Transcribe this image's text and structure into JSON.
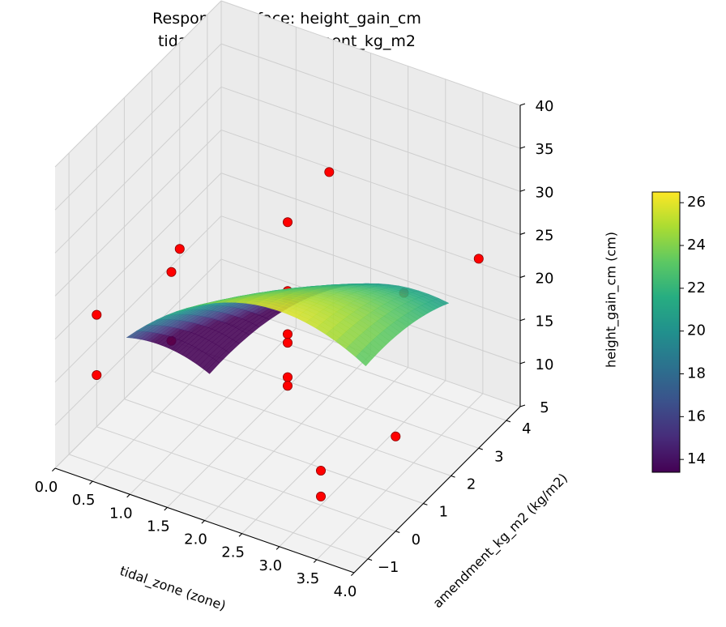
{
  "chart_data": {
    "type": "surface3d",
    "title_line1": "Response Surface: height_gain_cm",
    "title_line2": "tidal_zone vs amendment_kg_m2",
    "xlabel": "tidal_zone (zone)",
    "ylabel": "amendment_kg_m2 (kg/m2)",
    "zlabel": "height_gain_cm (cm)",
    "xlim": [
      0,
      4
    ],
    "ylim": [
      -1.5,
      4.5
    ],
    "zlim": [
      5,
      40
    ],
    "x_ticks": [
      "0.0",
      "0.5",
      "1.0",
      "1.5",
      "2.0",
      "2.5",
      "3.0",
      "3.5",
      "4.0"
    ],
    "y_ticks": [
      "−1",
      "0",
      "1",
      "2",
      "3",
      "4"
    ],
    "z_ticks": [
      "5",
      "10",
      "15",
      "20",
      "25",
      "30",
      "35",
      "40"
    ],
    "grid": true,
    "colormap": "viridis",
    "colorbar": {
      "min": 13.4,
      "max": 26.5,
      "ticks": [
        "14",
        "16",
        "18",
        "20",
        "22",
        "24",
        "26"
      ]
    },
    "surface": {
      "x_range": [
        0.4,
        3.6
      ],
      "y_range": [
        0,
        3
      ],
      "model": "z = 12.6 + 10.8*x - 2.2*x^2 - 3.9*y + 1.2*x*y - 0.4*y^2"
    },
    "points": [
      {
        "x": 0.0,
        "y": 0.0,
        "z": 18
      },
      {
        "x": 0.0,
        "y": 3.0,
        "z": 16
      },
      {
        "x": 0.0,
        "y": 0.0,
        "z": 11
      },
      {
        "x": 2.0,
        "y": 1.5,
        "z": 30
      },
      {
        "x": 2.0,
        "y": 1.5,
        "z": 22
      },
      {
        "x": 2.0,
        "y": 1.5,
        "z": 21
      },
      {
        "x": 2.0,
        "y": 1.5,
        "z": 17
      },
      {
        "x": 2.0,
        "y": 1.5,
        "z": 16
      },
      {
        "x": 2.0,
        "y": 1.5,
        "z": 12
      },
      {
        "x": 2.0,
        "y": 1.5,
        "z": 11
      },
      {
        "x": 4.0,
        "y": 3.0,
        "z": 27
      },
      {
        "x": 1.0,
        "y": 0.0,
        "z": 26
      },
      {
        "x": 1.0,
        "y": 0.0,
        "z": 18
      },
      {
        "x": 3.0,
        "y": 0.0,
        "z": 9
      },
      {
        "x": 3.0,
        "y": 0.0,
        "z": 6
      },
      {
        "x": 3.0,
        "y": 3.0,
        "z": 20
      },
      {
        "x": 4.0,
        "y": 0.0,
        "z": 16
      },
      {
        "x": 2.0,
        "y": 3.0,
        "z": 31
      }
    ]
  }
}
